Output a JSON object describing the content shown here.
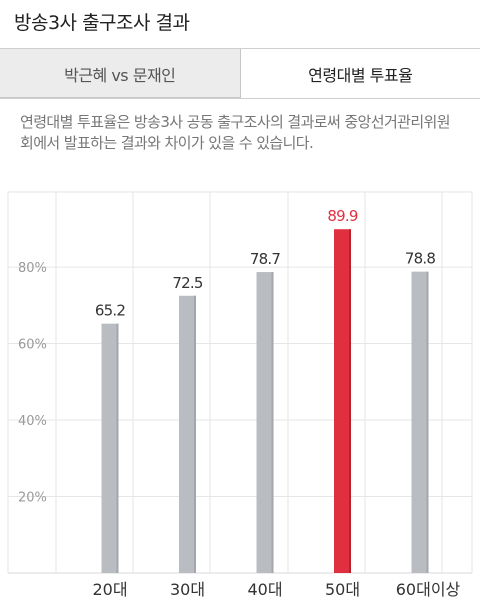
{
  "header": {
    "title": "방송3사 출구조사 결과"
  },
  "tabs": [
    {
      "label": "박근혜 vs 문재인",
      "active": false
    },
    {
      "label": "연령대별 투표율",
      "active": true
    }
  ],
  "notice": "연령대별 투표율은 방송3사 공동 출구조사의 결과로써 중앙선거관리위원회에서 발표하는 결과와 차이가 있을 수 있습니다.",
  "colors": {
    "bar": "#b9bcc1",
    "highlight": "#e03040",
    "highlight_label": "#e03040",
    "grid": "#e6e6e6",
    "tick_label": "#9a9a9a"
  },
  "chart_data": {
    "type": "bar",
    "categories": [
      "20대",
      "30대",
      "40대",
      "50대",
      "60대이상"
    ],
    "values": [
      65.2,
      72.5,
      78.7,
      89.9,
      78.8
    ],
    "value_labels": [
      "65.2",
      "72.5",
      "78.7",
      "89.9",
      "78.8"
    ],
    "highlight_index": 3,
    "y_ticks": [
      {
        "value": 20,
        "label": "20%"
      },
      {
        "value": 40,
        "label": "40%"
      },
      {
        "value": 60,
        "label": "60%"
      },
      {
        "value": 80,
        "label": "80%"
      }
    ],
    "ylim": [
      0,
      100
    ],
    "grid": true,
    "title": "",
    "xlabel": "",
    "ylabel": ""
  }
}
